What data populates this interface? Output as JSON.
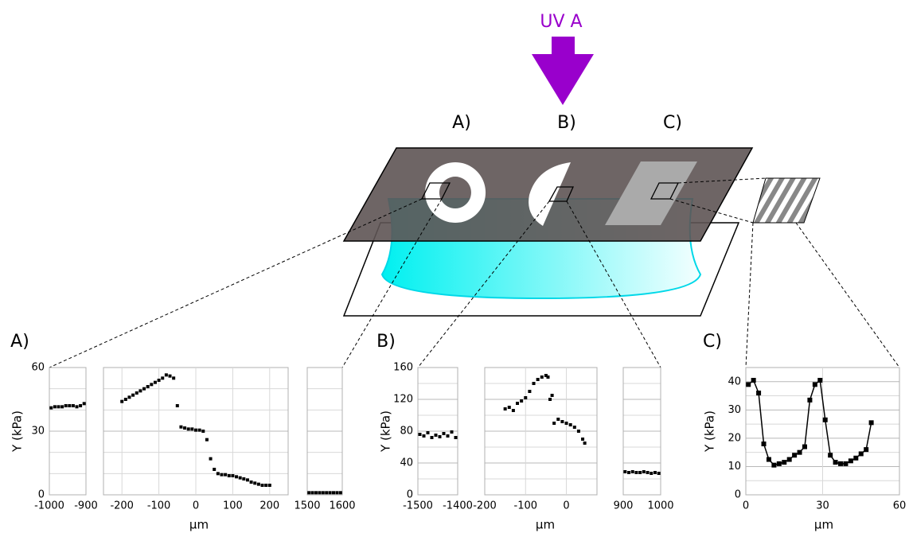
{
  "diagram": {
    "uv_label": "UV A",
    "mask_labels": [
      "A)",
      "B)",
      "C)"
    ]
  },
  "chart_data": [
    {
      "type": "scatter",
      "label": "A)",
      "y_label": "Y (kPa)",
      "x_label": "µm",
      "color": "#000000",
      "ylim": [
        0,
        60
      ],
      "yticks": [
        0,
        30,
        60
      ],
      "minor_yticks": [
        10,
        20,
        40,
        50
      ],
      "grid": true,
      "panels": [
        {
          "xlim": [
            -1000,
            -900
          ],
          "xticks": [
            -1000,
            -900
          ],
          "x": [
            -995,
            -985,
            -975,
            -965,
            -955,
            -945,
            -935,
            -925,
            -915,
            -905
          ],
          "values": [
            41,
            41.5,
            41.5,
            41.5,
            42,
            42,
            42,
            41.5,
            42,
            43
          ]
        },
        {
          "xlim": [
            -250,
            250
          ],
          "xticks": [
            -200,
            -100,
            0,
            100,
            200
          ],
          "x": [
            -200,
            -190,
            -180,
            -170,
            -160,
            -150,
            -140,
            -130,
            -120,
            -110,
            -100,
            -90,
            -80,
            -70,
            -60,
            -50,
            -40,
            -30,
            -20,
            -10,
            0,
            10,
            20,
            30,
            40,
            50,
            60,
            70,
            80,
            90,
            100,
            110,
            120,
            130,
            140,
            150,
            160,
            170,
            180,
            190,
            200
          ],
          "values": [
            44,
            45,
            46,
            47,
            48,
            49,
            50,
            51,
            52,
            53,
            54,
            55,
            56.5,
            56,
            55,
            42,
            32,
            31.5,
            31,
            31,
            30.5,
            30.5,
            30,
            26,
            17,
            12,
            10,
            9.5,
            9.5,
            9,
            9,
            8.5,
            8,
            7.5,
            7,
            6,
            5.5,
            5,
            4.5,
            4.5,
            4.5
          ]
        },
        {
          "xlim": [
            1500,
            1600
          ],
          "xticks": [
            1500,
            1600
          ],
          "x": [
            1505,
            1515,
            1525,
            1535,
            1545,
            1555,
            1565,
            1575,
            1585,
            1595
          ],
          "values": [
            1,
            1,
            1,
            1,
            1,
            1,
            1,
            1,
            1,
            1
          ]
        }
      ]
    },
    {
      "type": "scatter",
      "label": "B)",
      "y_label": "Y (kPa)",
      "x_label": "µm",
      "color": "#000000",
      "ylim": [
        0,
        160
      ],
      "yticks": [
        0,
        40,
        80,
        120,
        160
      ],
      "minor_yticks": [
        20,
        60,
        100,
        140
      ],
      "grid": true,
      "panels": [
        {
          "xlim": [
            -1500,
            -1400
          ],
          "xticks": [
            -1500,
            -1400
          ],
          "x": [
            -1495,
            -1485,
            -1475,
            -1465,
            -1455,
            -1445,
            -1435,
            -1425,
            -1415,
            -1405
          ],
          "values": [
            76,
            74,
            78,
            72,
            75,
            73,
            77,
            74,
            79,
            72
          ]
        },
        {
          "xlim": [
            -200,
            75
          ],
          "xticks": [
            -200,
            -100,
            0
          ],
          "x": [
            -150,
            -140,
            -130,
            -120,
            -110,
            -100,
            -90,
            -80,
            -70,
            -60,
            -50,
            -45,
            -40,
            -35,
            -30,
            -20,
            -10,
            0,
            10,
            20,
            30,
            40,
            45
          ],
          "values": [
            108,
            110,
            106,
            115,
            118,
            122,
            130,
            140,
            145,
            148,
            150,
            148,
            120,
            125,
            90,
            95,
            92,
            90,
            88,
            85,
            80,
            70,
            65
          ]
        },
        {
          "xlim": [
            900,
            1000
          ],
          "xticks": [
            900,
            1000
          ],
          "x": [
            905,
            915,
            925,
            935,
            945,
            955,
            965,
            975,
            985,
            995
          ],
          "values": [
            29,
            28,
            29,
            28,
            28,
            29,
            28,
            27,
            28,
            27
          ]
        }
      ]
    },
    {
      "type": "line",
      "label": "C)",
      "y_label": "Y (kPa)",
      "x_label": "µm",
      "color": "#000000",
      "ylim": [
        0,
        45
      ],
      "yticks": [
        0,
        10,
        20,
        30,
        40
      ],
      "minor_yticks": [
        5,
        15,
        25,
        35,
        45
      ],
      "grid": true,
      "panels": [
        {
          "xlim": [
            0,
            60
          ],
          "xticks": [
            0,
            30,
            60
          ],
          "x": [
            1,
            3,
            5,
            7,
            9,
            11,
            13,
            15,
            17,
            19,
            21,
            23,
            25,
            27,
            29,
            31,
            33,
            35,
            37,
            39,
            41,
            43,
            45,
            47,
            49
          ],
          "values": [
            39,
            40.5,
            36,
            18,
            12.5,
            10.5,
            11,
            11.5,
            12.5,
            14,
            15,
            17,
            33.5,
            39,
            40.5,
            26.5,
            14,
            11.5,
            11,
            11,
            12,
            13,
            14.5,
            16,
            25.5
          ]
        }
      ]
    }
  ]
}
